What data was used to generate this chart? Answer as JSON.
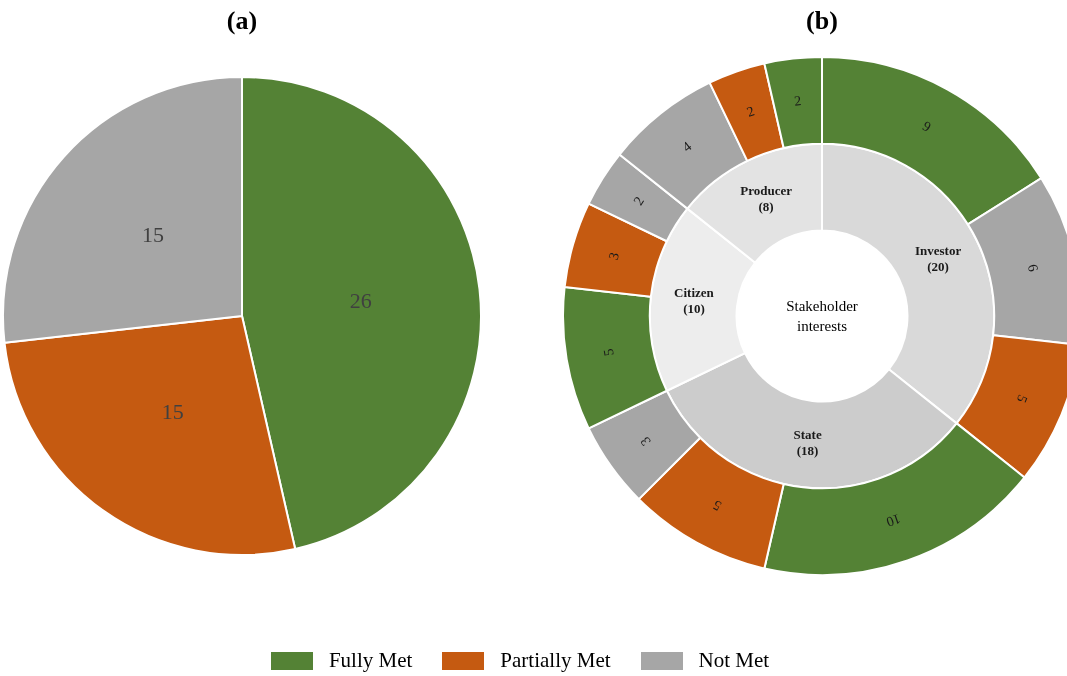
{
  "chart_data": [
    {
      "type": "pie",
      "title": "(a)",
      "categories": [
        "Fully Met",
        "Partially Met",
        "Not Met"
      ],
      "values": [
        26,
        15,
        15
      ],
      "colors": [
        "#548235",
        "#c55a11",
        "#a6a6a6"
      ],
      "data_labels": true,
      "legend": "bottom"
    },
    {
      "type": "donut",
      "title": "(b)",
      "data_labels": true,
      "annotations": [
        "Stakeholder interests"
      ],
      "series": [
        {
          "values": [
            9,
            6,
            5,
            10,
            5,
            3,
            5,
            3,
            2,
            4,
            2,
            2
          ],
          "colors": [
            "#548235",
            "#a6a6a6",
            "#c55a11",
            "#548235",
            "#c55a11",
            "#a6a6a6",
            "#548235",
            "#c55a11",
            "#a6a6a6",
            "#a6a6a6",
            "#c55a11",
            "#548235"
          ]
        },
        {
          "values": [
            20,
            18,
            10,
            8
          ],
          "colors": [
            "#d9d9d9",
            "#cccccc",
            "#ededed",
            "#e3e3e3"
          ],
          "value_labels": [
            "Investor (20)",
            "State (18)",
            "Citizen (10)",
            "Producer (8)"
          ]
        }
      ]
    }
  ]
}
